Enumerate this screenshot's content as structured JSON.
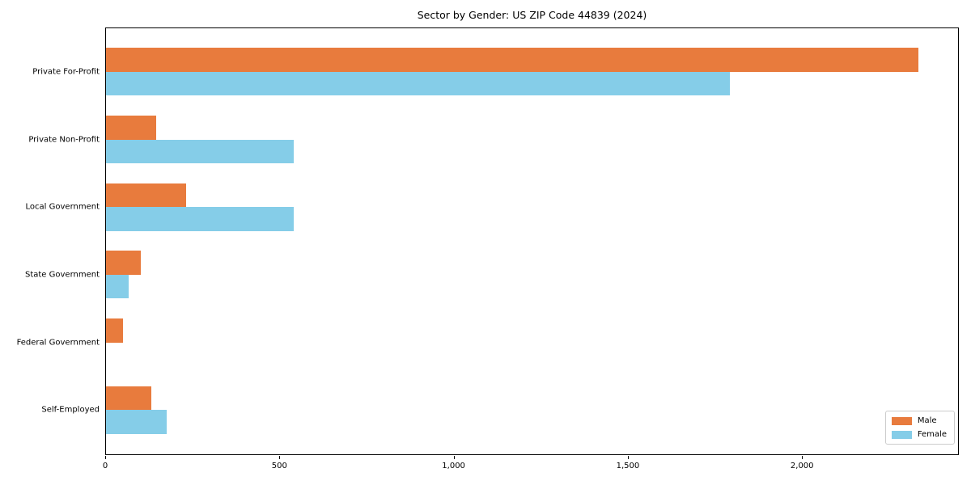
{
  "chart_data": {
    "type": "bar",
    "orientation": "horizontal",
    "title": "Sector by Gender: US ZIP Code 44839 (2024)",
    "categories": [
      "Private For-Profit",
      "Private Non-Profit",
      "Local Government",
      "State Government",
      "Federal Government",
      "Self-Employed"
    ],
    "series": [
      {
        "name": "Male",
        "color": "#e87b3d",
        "values": [
          2335,
          145,
          230,
          100,
          48,
          130
        ]
      },
      {
        "name": "Female",
        "color": "#85cde8",
        "values": [
          1795,
          540,
          540,
          65,
          0,
          175
        ]
      }
    ],
    "xlabel": "",
    "ylabel": "",
    "xlim": [
      0,
      2450
    ],
    "x_ticks": [
      0,
      500,
      1000,
      1500,
      2000
    ],
    "x_tick_labels": [
      "0",
      "500",
      "1,000",
      "1,500",
      "2,000"
    ],
    "grid": false,
    "legend_position": "lower right",
    "plot_background": "#ffffff",
    "spine_color": "#000000"
  }
}
